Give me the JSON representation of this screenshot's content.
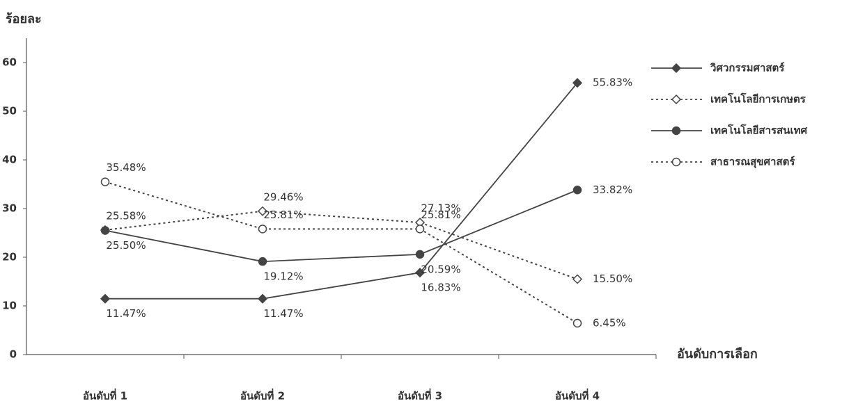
{
  "chart_data": {
    "type": "line",
    "y_axis_label": "ร้อยละ",
    "x_axis_label": "อันดับการเลือก",
    "categories": [
      "อันดับที่ 1",
      "อันดับที่ 2",
      "อันดับที่ 3",
      "อันดับที่ 4"
    ],
    "ylim": [
      0,
      65
    ],
    "yticks": [
      0,
      10,
      20,
      30,
      40,
      50,
      60
    ],
    "legend": "right",
    "series": [
      {
        "name": "วิศวกรรมศาสตร์",
        "color": "#444444",
        "line_style": "solid",
        "marker": "diamond",
        "filled": true,
        "values": [
          11.47,
          11.47,
          16.83,
          55.83
        ],
        "value_labels": [
          "11.47%",
          "11.47%",
          "16.83%",
          "55.83%"
        ]
      },
      {
        "name": "เทคโนโลยีการเกษตร",
        "color": "#444444",
        "line_style": "dotted",
        "marker": "diamond",
        "filled": false,
        "values": [
          25.58,
          29.46,
          27.13,
          15.5
        ],
        "value_labels": [
          "25.58%",
          "29.46%",
          "27.13%",
          "15.50%"
        ]
      },
      {
        "name": "เทคโนโลยีสารสนเทศ",
        "color": "#444444",
        "line_style": "solid",
        "marker": "circle",
        "filled": true,
        "values": [
          25.5,
          19.12,
          20.59,
          33.82
        ],
        "value_labels": [
          "25.50%",
          "19.12%",
          "20.59%",
          "33.82%"
        ]
      },
      {
        "name": "สาธารณสุขศาสตร์",
        "color": "#444444",
        "line_style": "dotted",
        "marker": "circle",
        "filled": false,
        "values": [
          35.48,
          25.81,
          25.81,
          6.45
        ],
        "value_labels": [
          "35.48%",
          "25.81%",
          "25.81%",
          "6.45%"
        ]
      }
    ]
  }
}
